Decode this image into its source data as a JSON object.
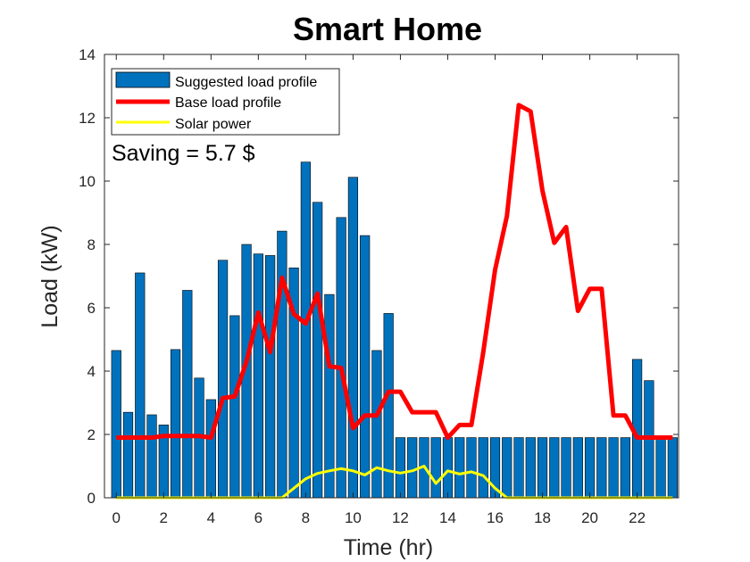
{
  "chart_data": {
    "type": "bar",
    "title": "Smart Home",
    "xlabel": "Time (hr)",
    "ylabel": "Load (kW)",
    "xlim": [
      -0.5,
      23.75
    ],
    "ylim": [
      0,
      14
    ],
    "xticks": [
      0,
      2,
      4,
      6,
      8,
      10,
      12,
      14,
      16,
      18,
      20,
      22
    ],
    "yticks": [
      0,
      2,
      4,
      6,
      8,
      10,
      12,
      14
    ],
    "grid": false,
    "legend_position": "top-left",
    "annotation": "Saving = 5.7 $",
    "series": [
      {
        "name": "Suggested load profile",
        "kind": "bar",
        "color": "#0072BD",
        "x": [
          0,
          0.5,
          1,
          1.5,
          2,
          2.5,
          3,
          3.5,
          4,
          4.5,
          5,
          5.5,
          6,
          6.5,
          7,
          7.5,
          8,
          8.5,
          9,
          9.5,
          10,
          10.5,
          11,
          11.5,
          12,
          12.5,
          13,
          13.5,
          14,
          14.5,
          15,
          15.5,
          16,
          16.5,
          17,
          17.5,
          18,
          18.5,
          19,
          19.5,
          20,
          20.5,
          21,
          21.5,
          22,
          22.5,
          23,
          23.5
        ],
        "values": [
          4.65,
          2.7,
          7.1,
          2.62,
          2.3,
          4.68,
          6.55,
          3.78,
          3.1,
          7.5,
          5.75,
          8.0,
          7.7,
          7.65,
          8.42,
          7.26,
          10.6,
          9.33,
          6.42,
          8.85,
          10.12,
          8.28,
          4.65,
          5.82,
          1.9,
          1.9,
          1.9,
          1.9,
          1.9,
          1.9,
          1.9,
          1.9,
          1.9,
          1.9,
          1.9,
          1.9,
          1.9,
          1.9,
          1.9,
          1.9,
          1.9,
          1.9,
          1.9,
          1.9,
          4.37,
          3.7,
          1.9,
          1.9
        ]
      },
      {
        "name": "Base load profile",
        "kind": "line",
        "color": "#FF0000",
        "x": [
          0,
          0.5,
          1,
          1.5,
          2,
          2.5,
          3,
          3.5,
          4,
          4.5,
          5,
          5.5,
          6,
          6.5,
          7,
          7.5,
          8,
          8.5,
          9,
          9.5,
          10,
          10.5,
          11,
          11.5,
          12,
          12.5,
          13,
          13.5,
          14,
          14.5,
          15,
          15.5,
          16,
          16.5,
          17,
          17.5,
          18,
          18.5,
          19,
          19.5,
          20,
          20.5,
          21,
          21.5,
          22,
          22.5,
          23,
          23.5
        ],
        "values": [
          1.9,
          1.9,
          1.9,
          1.9,
          1.95,
          1.95,
          1.95,
          1.95,
          1.9,
          3.15,
          3.2,
          4.3,
          5.85,
          4.6,
          6.95,
          5.8,
          5.5,
          6.45,
          4.15,
          4.1,
          2.2,
          2.6,
          2.6,
          3.35,
          3.35,
          2.7,
          2.7,
          2.7,
          1.9,
          2.3,
          2.3,
          4.6,
          7.2,
          8.9,
          12.4,
          12.2,
          9.7,
          8.05,
          8.55,
          5.9,
          6.6,
          6.6,
          2.6,
          2.6,
          1.9,
          1.9,
          1.9,
          1.9
        ]
      },
      {
        "name": "Solar power",
        "kind": "line",
        "color": "#FFFF00",
        "x": [
          0,
          0.5,
          1,
          1.5,
          2,
          2.5,
          3,
          3.5,
          4,
          4.5,
          5,
          5.5,
          6,
          6.5,
          7,
          7.5,
          8,
          8.5,
          9,
          9.5,
          10,
          10.5,
          11,
          11.5,
          12,
          12.5,
          13,
          13.5,
          14,
          14.5,
          15,
          15.5,
          16,
          16.5,
          17,
          17.5,
          18,
          18.5,
          19,
          19.5,
          20,
          20.5,
          21,
          21.5,
          22,
          22.5,
          23,
          23.5
        ],
        "values": [
          0,
          0,
          0,
          0,
          0,
          0,
          0,
          0,
          0,
          0,
          0,
          0,
          0,
          0,
          0,
          0.3,
          0.6,
          0.77,
          0.85,
          0.92,
          0.85,
          0.72,
          0.95,
          0.85,
          0.78,
          0.85,
          1.0,
          0.45,
          0.85,
          0.75,
          0.82,
          0.7,
          0.3,
          0,
          0,
          0,
          0,
          0,
          0,
          0,
          0,
          0,
          0,
          0,
          0,
          0,
          0,
          0
        ]
      }
    ]
  }
}
